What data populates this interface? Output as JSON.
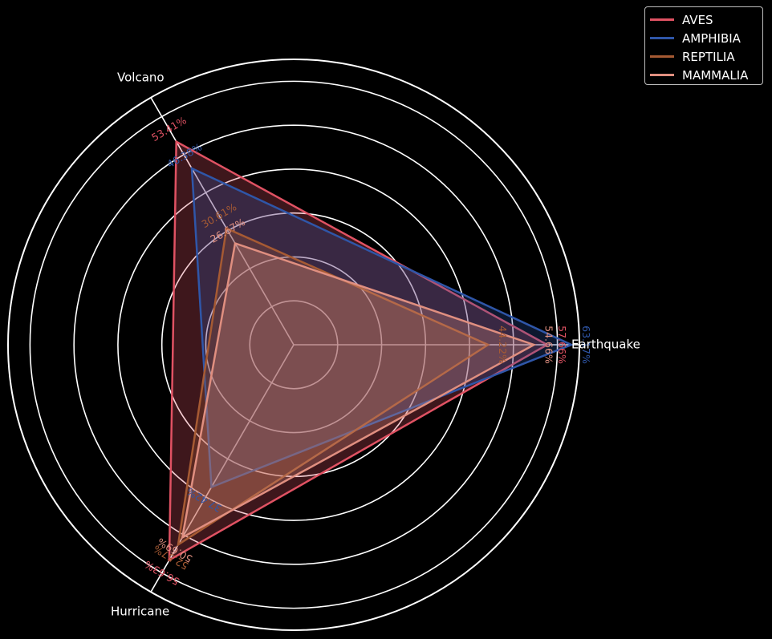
{
  "chart_data": {
    "type": "radar",
    "title": "",
    "axes": [
      "Earthquake",
      "Volcano",
      "Hurricane"
    ],
    "rmax": 65,
    "ring_values": [
      10,
      20,
      30,
      40,
      50,
      60
    ],
    "grid": true,
    "legend_placement": "top-right",
    "series": [
      {
        "name": "AVES",
        "color": "#e05263",
        "values": [
          57.66,
          53.41,
          56.63
        ],
        "labels": [
          "57.66%",
          "53.41%",
          "56.63%"
        ]
      },
      {
        "name": "AMPHIBIA",
        "color": "#2f56a8",
        "values": [
          63.17,
          46.38,
          37.42
        ],
        "labels": [
          "63.17%",
          "46.38%",
          "37.42%"
        ]
      },
      {
        "name": "REPTILIA",
        "color": "#a65a33",
        "values": [
          44.22,
          30.61,
          52.57
        ],
        "labels": [
          "44.22%",
          "30.61%",
          "52.57%"
        ]
      },
      {
        "name": "MAMMALIA",
        "color": "#e08f80",
        "values": [
          54.66,
          26.67,
          50.69
        ],
        "labels": [
          "54.66%",
          "26.67%",
          "50.69%"
        ]
      }
    ]
  }
}
